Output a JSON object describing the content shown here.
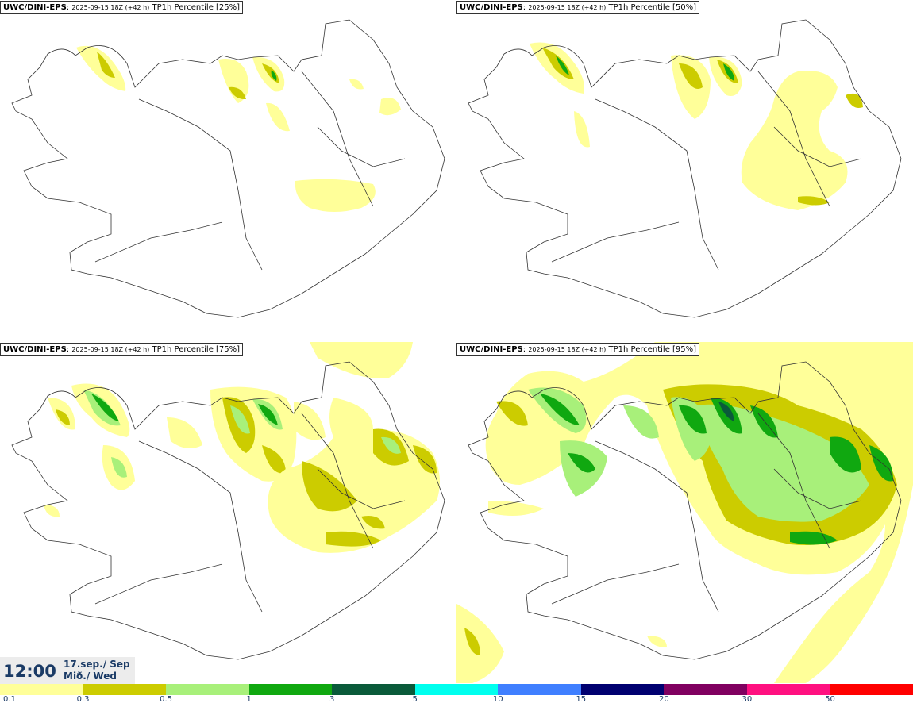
{
  "panels": [
    {
      "model": "UWC/DINI-EPS",
      "run": "2025-09-15 18Z (+42 h)",
      "field": "TP1h Percentile [25%]"
    },
    {
      "model": "UWC/DINI-EPS",
      "run": "2025-09-15 18Z (+42 h)",
      "field": "TP1h Percentile [50%]"
    },
    {
      "model": "UWC/DINI-EPS",
      "run": "2025-09-15 18Z (+42 h)",
      "field": "TP1h Percentile [75%]"
    },
    {
      "model": "UWC/DINI-EPS",
      "run": "2025-09-15 18Z (+42 h)",
      "field": "TP1h Percentile [95%]"
    }
  ],
  "valid_time": {
    "time": "12:00",
    "date_line1": "17.sep./ Sep",
    "date_line2": "Mið./ Wed"
  },
  "legend": {
    "colors": [
      "#ffff99",
      "#cccc00",
      "#a8f07a",
      "#10a810",
      "#0a5a3a",
      "#00ffee",
      "#3f7fff",
      "#000070",
      "#800060",
      "#ff1080",
      "#ff0000"
    ],
    "ticks": [
      "0.1",
      "0.3",
      "0.5",
      "1",
      "3",
      "5",
      "10",
      "15",
      "20",
      "30",
      "50"
    ]
  }
}
